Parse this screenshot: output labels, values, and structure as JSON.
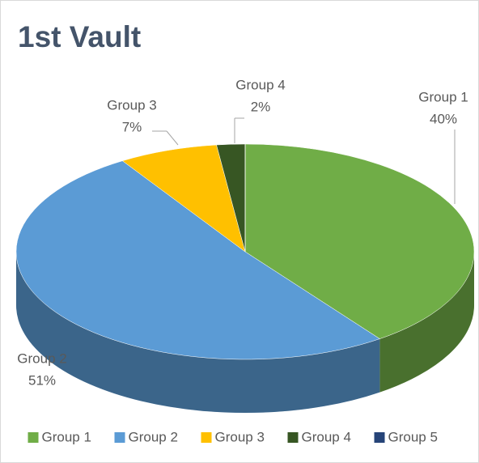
{
  "chart_data": {
    "type": "pie",
    "title": "1st Vault",
    "categories": [
      "Group 1",
      "Group 2",
      "Group 3",
      "Group 4",
      "Group 5"
    ],
    "values": [
      40,
      51,
      7,
      2,
      0
    ],
    "value_labels": [
      "40%",
      "51%",
      "7%",
      "2%",
      null
    ],
    "colors": [
      "#70ad47",
      "#5b9bd5",
      "#ffc000",
      "#375623",
      "#264478"
    ],
    "legend": "bottom"
  }
}
